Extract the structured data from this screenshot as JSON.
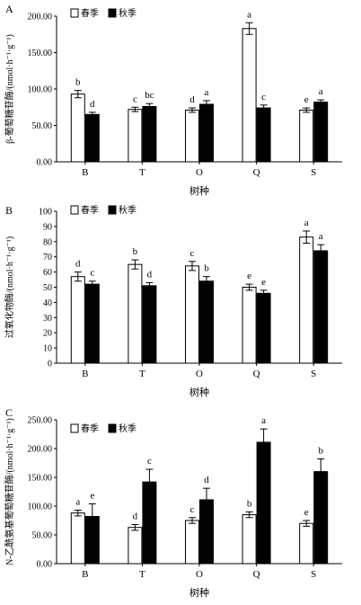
{
  "chart_data": [
    {
      "type": "bar",
      "panel_label": "A",
      "ylabel": "β-葡萄糖苷酶/(nmol·h⁻¹·g⁻¹)",
      "xlabel": "树种",
      "categories": [
        "B",
        "T",
        "O",
        "Q",
        "S"
      ],
      "ylim": [
        0,
        200
      ],
      "yticks": [
        0,
        50,
        100,
        150,
        200
      ],
      "ytick_labels": [
        "0.00",
        "50.00",
        "100.00",
        "150.00",
        "200.00"
      ],
      "legend": [
        "春季",
        "秋季"
      ],
      "legend_position": "top-left",
      "series": [
        {
          "name": "春季",
          "values": [
            93,
            72,
            71,
            183,
            71
          ],
          "errors": [
            5,
            3,
            3,
            8,
            3
          ],
          "letters": [
            "b",
            "c",
            "d",
            "a",
            "e"
          ],
          "color": "#ffffff"
        },
        {
          "name": "秋季",
          "values": [
            65,
            76,
            79,
            74,
            82
          ],
          "errors": [
            3,
            4,
            5,
            4,
            3
          ],
          "letters": [
            "d",
            "bc",
            "a",
            "c",
            "a"
          ],
          "color": "#000000"
        }
      ]
    },
    {
      "type": "bar",
      "panel_label": "B",
      "ylabel": "过氧化物酶/(nmol·h⁻¹·g⁻¹)",
      "xlabel": "树种",
      "categories": [
        "B",
        "T",
        "O",
        "Q",
        "S"
      ],
      "ylim": [
        0,
        100
      ],
      "yticks": [
        0,
        10,
        20,
        30,
        40,
        50,
        60,
        70,
        80,
        90,
        100
      ],
      "ytick_labels": [
        "0",
        "10",
        "20",
        "30",
        "40",
        "50",
        "60",
        "70",
        "80",
        "90",
        "100"
      ],
      "legend": [
        "春季",
        "秋季"
      ],
      "legend_position": "top-left",
      "series": [
        {
          "name": "春季",
          "values": [
            57,
            65,
            64,
            50,
            83
          ],
          "errors": [
            3,
            3,
            3,
            2,
            4
          ],
          "letters": [
            "d",
            "b",
            "c",
            "e",
            "a"
          ],
          "color": "#ffffff"
        },
        {
          "name": "秋季",
          "values": [
            52,
            51,
            54,
            46,
            74
          ],
          "errors": [
            2,
            2,
            3,
            2,
            4
          ],
          "letters": [
            "c",
            "d",
            "b",
            "e",
            "a"
          ],
          "color": "#000000"
        }
      ]
    },
    {
      "type": "bar",
      "panel_label": "C",
      "ylabel": "N-乙酰氨基葡萄糖苷酶/(nmol·h⁻¹·g⁻¹)",
      "xlabel": "树种",
      "categories": [
        "B",
        "T",
        "O",
        "Q",
        "S"
      ],
      "ylim": [
        0,
        250
      ],
      "yticks": [
        0,
        50,
        100,
        150,
        200,
        250
      ],
      "ytick_labels": [
        "0.00",
        "50.00",
        "100.00",
        "150.00",
        "200.00",
        "250.00"
      ],
      "legend": [
        "春季",
        "秋季"
      ],
      "legend_position": "top-left",
      "series": [
        {
          "name": "春季",
          "values": [
            88,
            63,
            75,
            85,
            70
          ],
          "errors": [
            5,
            5,
            5,
            5,
            5
          ],
          "letters": [
            "a",
            "d",
            "c",
            "b",
            "e"
          ],
          "color": "#ffffff"
        },
        {
          "name": "秋季",
          "values": [
            82,
            142,
            111,
            211,
            160
          ],
          "errors": [
            22,
            22,
            20,
            23,
            22
          ],
          "letters": [
            "e",
            "c",
            "d",
            "a",
            "b"
          ],
          "color": "#000000"
        }
      ]
    }
  ]
}
